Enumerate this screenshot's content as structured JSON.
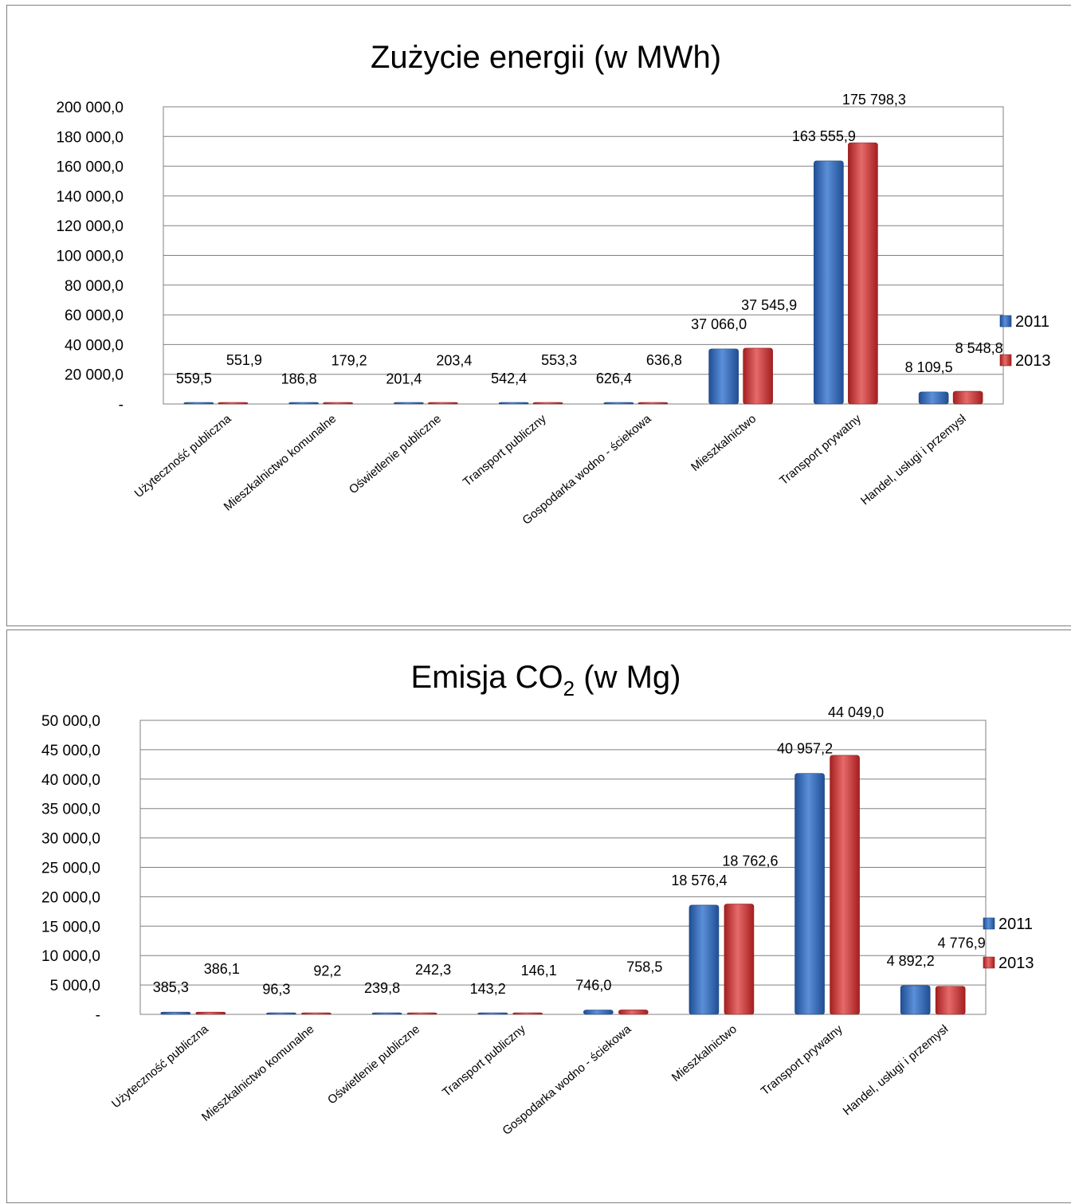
{
  "charts": [
    {
      "title": "Zużycie energii (w MWh)",
      "title_sub": "",
      "title_tail": ""
    },
    {
      "title": "Emisja CO",
      "title_sub": "2",
      "title_tail": " (w Mg)"
    }
  ],
  "colors": {
    "2011": "#2e68b8",
    "2013": "#cf3030",
    "grid": "#808080"
  },
  "chart_data": [
    {
      "type": "bar",
      "title": "Zużycie energii (w MWh)",
      "categories": [
        "Użyteczność publiczna",
        "Mieszkalnictwo komunalne",
        "Oświetlenie publiczne",
        "Transport publiczny",
        "Gospodarka wodno - ściekowa",
        "Mieszkalnictwo",
        "Transport prywatny",
        "Handel, usługi i przemysł"
      ],
      "series": [
        {
          "name": "2011",
          "values": [
            559.5,
            186.8,
            201.4,
            542.4,
            626.4,
            37066.0,
            163555.9,
            8109.5
          ],
          "labels": [
            "559,5",
            "186,8",
            "201,4",
            "542,4",
            "626,4",
            "37 066,0",
            "163 555,9",
            "8 109,5"
          ]
        },
        {
          "name": "2013",
          "values": [
            551.9,
            179.2,
            203.4,
            553.3,
            636.8,
            37545.9,
            175798.3,
            8548.8
          ],
          "labels": [
            "551,9",
            "179,2",
            "203,4",
            "553,3",
            "636,8",
            "37 545,9",
            "175 798,3",
            "8 548,8"
          ]
        }
      ],
      "ylim": [
        0,
        200000
      ],
      "yticks": [
        "-",
        "20 000,0",
        "40 000,0",
        "60 000,0",
        "80 000,0",
        "100 000,0",
        "120 000,0",
        "140 000,0",
        "160 000,0",
        "180 000,0",
        "200 000,0"
      ],
      "grid": true,
      "legend": "right"
    },
    {
      "type": "bar",
      "title": "Emisja CO2 (w Mg)",
      "categories": [
        "Użyteczność publiczna",
        "Mieszkalnictwo komunalne",
        "Oświetlenie publiczne",
        "Transport publiczny",
        "Gospodarka wodno - ściekowa",
        "Mieszkalnictwo",
        "Transport prywatny",
        "Handel, usługi i przemysł"
      ],
      "series": [
        {
          "name": "2011",
          "values": [
            385.3,
            96.3,
            239.8,
            143.2,
            746.0,
            18576.4,
            40957.2,
            4892.2
          ],
          "labels": [
            "385,3",
            "96,3",
            "239,8",
            "143,2",
            "746,0",
            "18 576,4",
            "40 957,2",
            "4 892,2"
          ]
        },
        {
          "name": "2013",
          "values": [
            386.1,
            92.2,
            242.3,
            146.1,
            758.5,
            18762.6,
            44049.0,
            4776.9
          ],
          "labels": [
            "386,1",
            "92,2",
            "242,3",
            "146,1",
            "758,5",
            "18 762,6",
            "44 049,0",
            "4 776,9"
          ]
        }
      ],
      "ylim": [
        0,
        50000
      ],
      "yticks": [
        "-",
        "5 000,0",
        "10 000,0",
        "15 000,0",
        "20 000,0",
        "25 000,0",
        "30 000,0",
        "35 000,0",
        "40 000,0",
        "45 000,0",
        "50 000,0"
      ],
      "grid": true,
      "legend": "right"
    }
  ]
}
